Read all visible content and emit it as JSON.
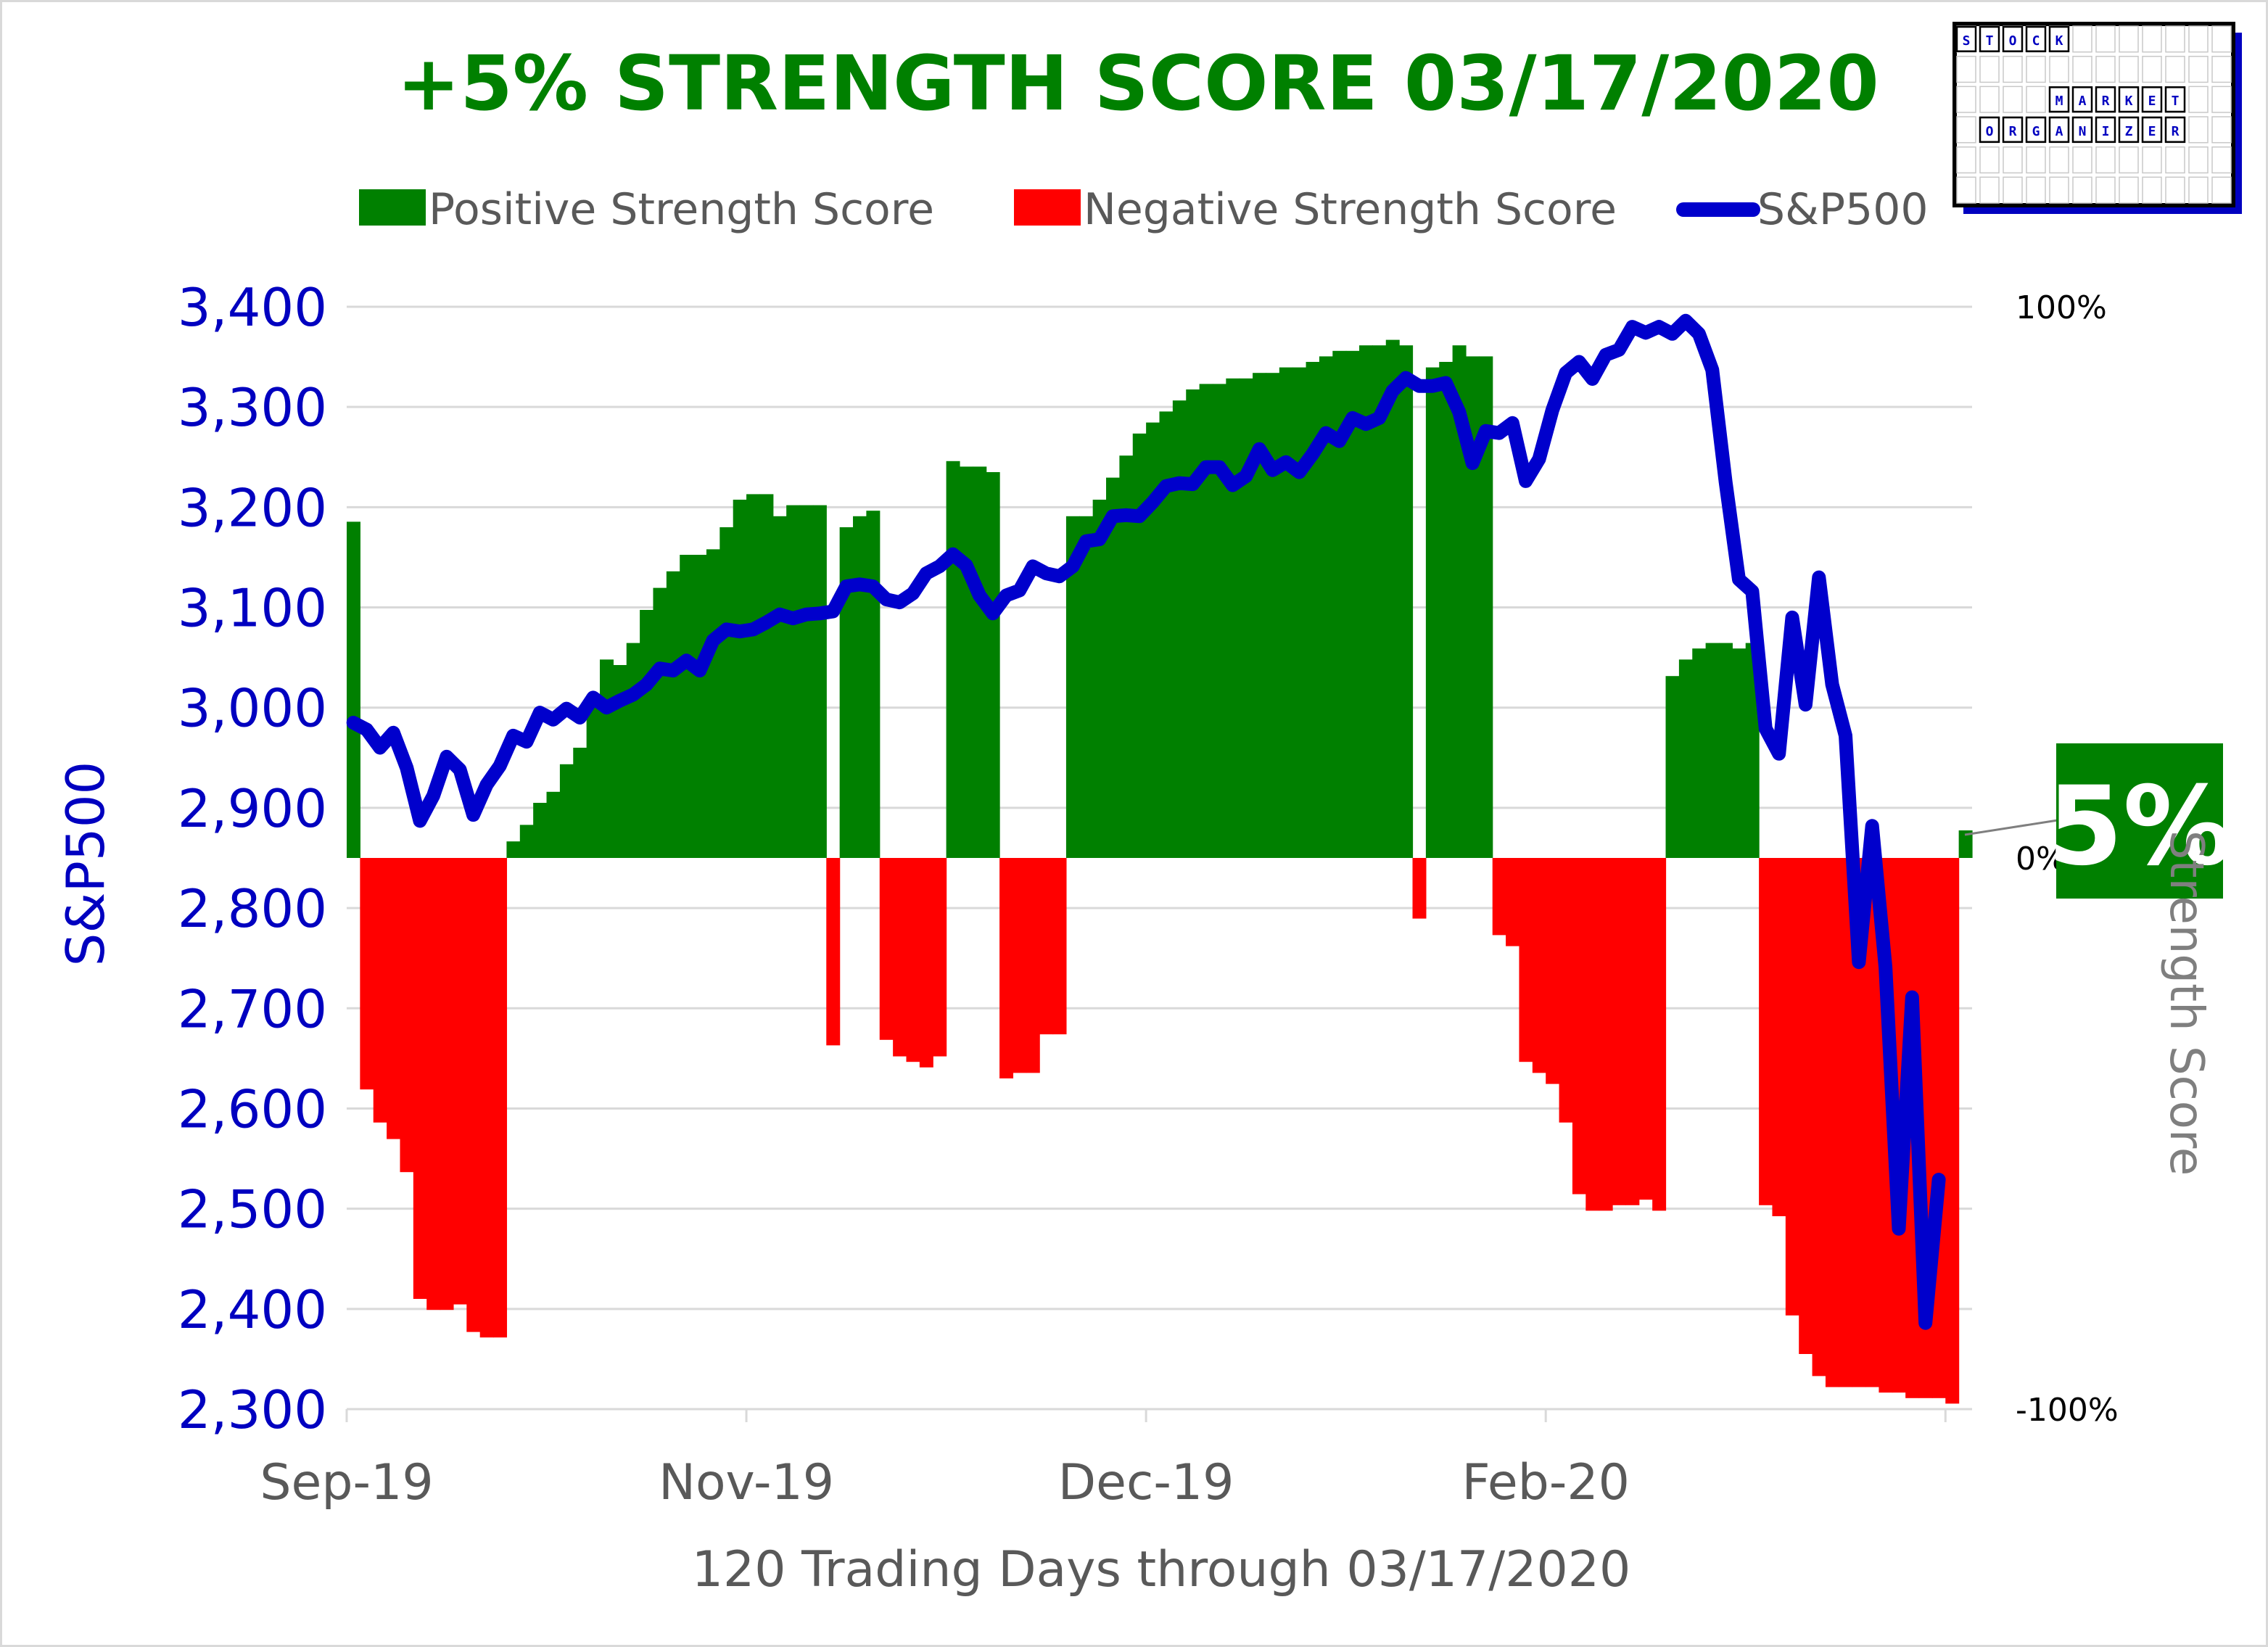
{
  "chart_data": {
    "type": "bar+line",
    "title": "+5% STRENGTH SCORE 03/17/2020",
    "xlabel": "120 Trading Days through 03/17/2020",
    "ylabel_left": "S&P500",
    "ylabel_right": "Strength Score",
    "left_axis": {
      "min": 2300,
      "max": 3400,
      "step": 100,
      "ticks": [
        "3,400",
        "3,300",
        "3,200",
        "3,100",
        "3,000",
        "2,900",
        "2,800",
        "2,700",
        "2,600",
        "2,500",
        "2,400",
        "2,300"
      ]
    },
    "right_axis": {
      "min": -100,
      "max": 100,
      "ticks": [
        {
          "value": 100,
          "label": "100%"
        },
        {
          "value": 0,
          "label": "0%"
        },
        {
          "value": -100,
          "label": "-100%"
        }
      ]
    },
    "x_ticks": [
      {
        "index": 0,
        "label": "Sep-19"
      },
      {
        "index": 30,
        "label": "Nov-19"
      },
      {
        "index": 60,
        "label": "Dec-19"
      },
      {
        "index": 90,
        "label": "Feb-20"
      }
    ],
    "legend": [
      {
        "label": "Positive Strength Score",
        "color": "#008000",
        "kind": "box"
      },
      {
        "label": "Negative Strength Score",
        "color": "#ff0000",
        "kind": "box"
      },
      {
        "label": "S&P500",
        "color": "#0000cc",
        "kind": "line"
      }
    ],
    "colors": {
      "positive": "#008000",
      "negative": "#ff0000",
      "line": "#0000cc",
      "grid": "#d9d9d9"
    },
    "current_score_label": "5%",
    "series": [
      {
        "name": "Strength Score",
        "axis": "right",
        "kind": "bar",
        "values": [
          61,
          -42,
          -48,
          -51,
          -57,
          -80,
          -82,
          -82,
          -81,
          -86,
          -87,
          -87,
          3,
          6,
          10,
          12,
          17,
          20,
          28,
          36,
          35,
          39,
          45,
          49,
          52,
          55,
          55,
          56,
          60,
          65,
          66,
          66,
          62,
          64,
          64,
          64,
          -34,
          60,
          62,
          63,
          -33,
          -36,
          -37,
          -38,
          -36,
          72,
          71,
          71,
          70,
          -40,
          -39,
          -39,
          -32,
          -32,
          62,
          62,
          65,
          69,
          73,
          77,
          79,
          81,
          83,
          85,
          86,
          86,
          87,
          87,
          88,
          88,
          89,
          89,
          90,
          91,
          92,
          92,
          93,
          93,
          94,
          93,
          -11,
          89,
          90,
          93,
          91,
          91,
          -14,
          -16,
          -37,
          -39,
          -41,
          -48,
          -61,
          -64,
          -64,
          -63,
          -63,
          -62,
          -64,
          33,
          36,
          38,
          39,
          39,
          38,
          39,
          -63,
          -65,
          -83,
          -90,
          -94,
          -96,
          -96,
          -96,
          -96,
          -97,
          -97,
          -98,
          -98,
          -98,
          -99,
          5
        ]
      },
      {
        "name": "S&P500",
        "axis": "left",
        "kind": "line",
        "values": [
          2985,
          2978,
          2960,
          2975,
          2940,
          2887,
          2912,
          2951,
          2938,
          2893,
          2923,
          2942,
          2972,
          2966,
          2995,
          2988,
          2999,
          2990,
          3010,
          3000,
          3007,
          3013,
          3023,
          3039,
          3037,
          3047,
          3037,
          3067,
          3078,
          3076,
          3078,
          3085,
          3093,
          3089,
          3093,
          3094,
          3096,
          3121,
          3123,
          3121,
          3108,
          3105,
          3114,
          3134,
          3141,
          3153,
          3142,
          3112,
          3094,
          3112,
          3117,
          3141,
          3134,
          3131,
          3141,
          3166,
          3168,
          3191,
          3192,
          3191,
          3205,
          3221,
          3224,
          3223,
          3240,
          3240,
          3222,
          3231,
          3258,
          3237,
          3245,
          3235,
          3253,
          3274,
          3266,
          3289,
          3283,
          3289,
          3316,
          3329,
          3321,
          3321,
          3324,
          3295,
          3244,
          3276,
          3274,
          3284,
          3226,
          3248,
          3297,
          3334,
          3345,
          3328,
          3352,
          3357,
          3380,
          3374,
          3380,
          3373,
          3386,
          3373,
          3337,
          3225,
          3128,
          3116,
          2979,
          2954,
          3090,
          3003,
          3130,
          3023,
          2972,
          2746,
          2882,
          2741,
          2480,
          2711,
          2386,
          2529
        ]
      }
    ]
  }
}
